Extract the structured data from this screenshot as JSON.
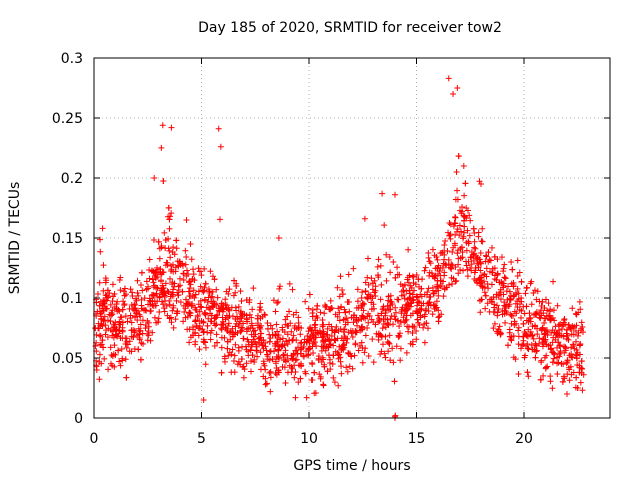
{
  "chart_data": {
    "type": "scatter",
    "title": "Day 185 of 2020, SRMTID for receiver tow2",
    "xlabel": "GPS time / hours",
    "ylabel": "SRMTID / TECUs",
    "xlim": [
      0,
      24
    ],
    "ylim": [
      0,
      0.3
    ],
    "x_ticks": [
      0,
      5,
      10,
      15,
      20
    ],
    "x_tick_labels": [
      "0",
      "5",
      "10",
      "15",
      "20"
    ],
    "y_ticks": [
      0,
      0.05,
      0.1,
      0.15,
      0.2,
      0.25,
      0.3
    ],
    "y_tick_labels": [
      "0",
      "0.05",
      "0.1",
      "0.15",
      "0.2",
      "0.25",
      "0.3"
    ],
    "grid": true,
    "marker": "+",
    "color": "#ff0000",
    "series": [
      {
        "name": "SRMTID",
        "profile": [
          [
            0.0,
            0.07
          ],
          [
            0.5,
            0.08
          ],
          [
            1.0,
            0.075
          ],
          [
            1.5,
            0.078
          ],
          [
            2.0,
            0.082
          ],
          [
            2.5,
            0.09
          ],
          [
            3.0,
            0.11
          ],
          [
            3.5,
            0.12
          ],
          [
            4.0,
            0.11
          ],
          [
            4.5,
            0.095
          ],
          [
            5.0,
            0.085
          ],
          [
            5.5,
            0.09
          ],
          [
            6.0,
            0.08
          ],
          [
            7.0,
            0.07
          ],
          [
            8.0,
            0.062
          ],
          [
            9.0,
            0.065
          ],
          [
            10.0,
            0.06
          ],
          [
            11.0,
            0.065
          ],
          [
            12.0,
            0.075
          ],
          [
            13.0,
            0.09
          ],
          [
            14.0,
            0.085
          ],
          [
            15.0,
            0.095
          ],
          [
            16.0,
            0.11
          ],
          [
            16.5,
            0.14
          ],
          [
            17.0,
            0.15
          ],
          [
            17.5,
            0.14
          ],
          [
            18.0,
            0.12
          ],
          [
            19.0,
            0.095
          ],
          [
            20.0,
            0.08
          ],
          [
            21.0,
            0.07
          ],
          [
            22.0,
            0.06
          ],
          [
            22.7,
            0.055
          ]
        ],
        "peaks": [
          [
            0.4,
            0.158
          ],
          [
            1.2,
            0.115
          ],
          [
            2.8,
            0.2
          ],
          [
            3.2,
            0.244
          ],
          [
            3.6,
            0.242
          ],
          [
            4.3,
            0.165
          ],
          [
            5.8,
            0.241
          ],
          [
            5.9,
            0.226
          ],
          [
            8.6,
            0.15
          ],
          [
            12.6,
            0.166
          ],
          [
            13.4,
            0.187
          ],
          [
            14.0,
            0.186
          ],
          [
            16.5,
            0.283
          ],
          [
            16.7,
            0.27
          ],
          [
            16.9,
            0.275
          ],
          [
            17.2,
            0.21
          ],
          [
            18.0,
            0.195
          ],
          [
            19.4,
            0.13
          ]
        ],
        "outliers": [
          [
            14.0,
            0.0
          ],
          [
            14.0,
            0.001
          ],
          [
            14.02,
            0.002
          ],
          [
            5.1,
            0.015
          ],
          [
            8.2,
            0.022
          ],
          [
            22.0,
            0.02
          ]
        ],
        "time_range_hours": [
          0,
          22.8
        ],
        "approx_point_count": 2300
      }
    ]
  }
}
